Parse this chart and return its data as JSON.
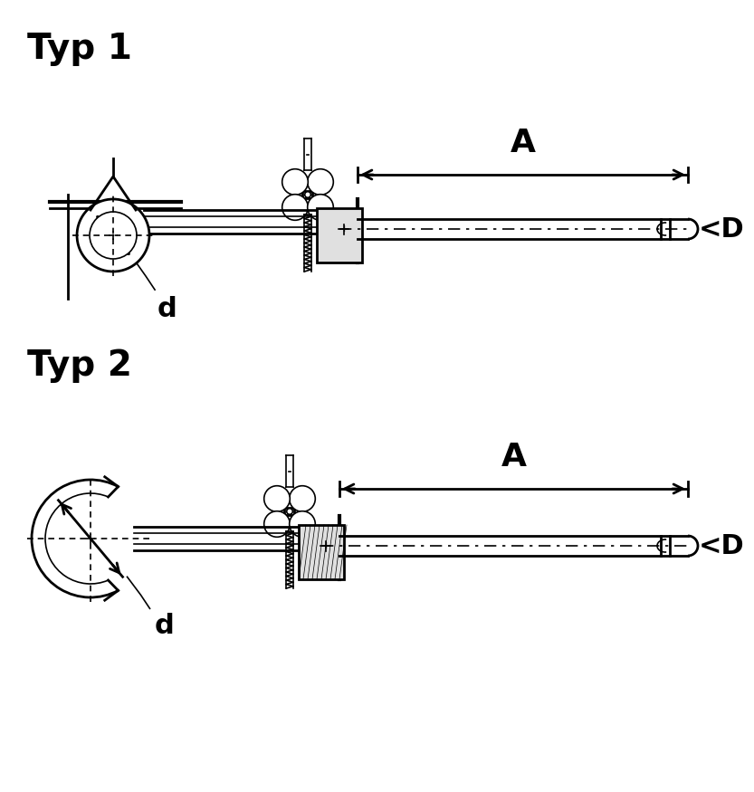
{
  "bg_color": "#ffffff",
  "line_color": "#000000",
  "title1": "Typ 1",
  "title2": "Typ 2",
  "label_d": "d",
  "label_A": "A",
  "label_D": "<D",
  "title_fontsize": 28,
  "label_fontsize": 22,
  "dim_fontsize": 26,
  "fig_w": 8.33,
  "fig_h": 8.75,
  "dpi": 100
}
